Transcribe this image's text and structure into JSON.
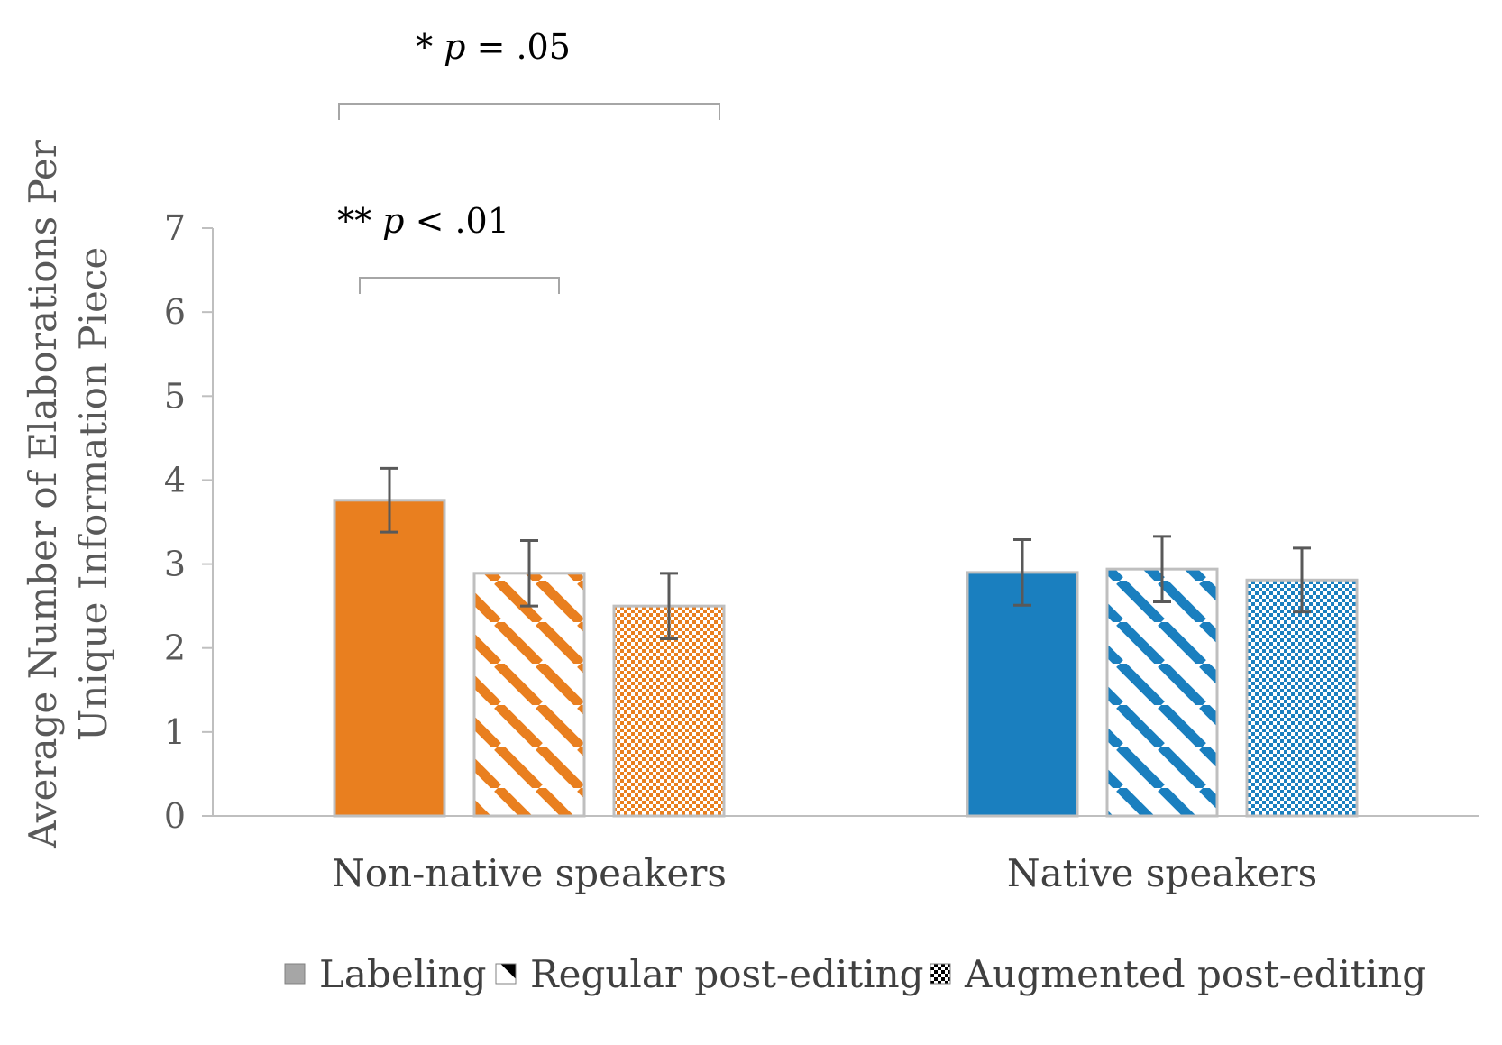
{
  "chart_data": {
    "type": "bar",
    "ylabel_lines": [
      "Average Number of Elaborations Per",
      "Unique Information Piece"
    ],
    "ylim": [
      0,
      7
    ],
    "yticks": [
      0,
      1,
      2,
      3,
      4,
      5,
      6,
      7
    ],
    "grid": false,
    "legend_position": "bottom",
    "categories": [
      "Non-native speakers",
      "Native speakers"
    ],
    "category_colors": [
      "#e97f1f",
      "#1a7fbf"
    ],
    "series": [
      {
        "name": "Labeling",
        "pattern": "solid",
        "values": [
          3.76,
          2.9
        ],
        "err": [
          0.38,
          0.39
        ]
      },
      {
        "name": "Regular post-editing",
        "pattern": "diagonal",
        "values": [
          2.89,
          2.94
        ],
        "err": [
          0.39,
          0.39
        ]
      },
      {
        "name": "Augmented post-editing",
        "pattern": "checker",
        "values": [
          2.5,
          2.81
        ],
        "err": [
          0.39,
          0.38
        ]
      }
    ],
    "annotations": [
      {
        "marker": "*",
        "p_symbol": "p",
        "relation": "= .05",
        "category": 0,
        "from_series": 0,
        "to_series": 2
      },
      {
        "marker": "**",
        "p_symbol": "p",
        "relation": "< .01",
        "category": 0,
        "from_series": 0,
        "to_series": 1
      }
    ]
  }
}
